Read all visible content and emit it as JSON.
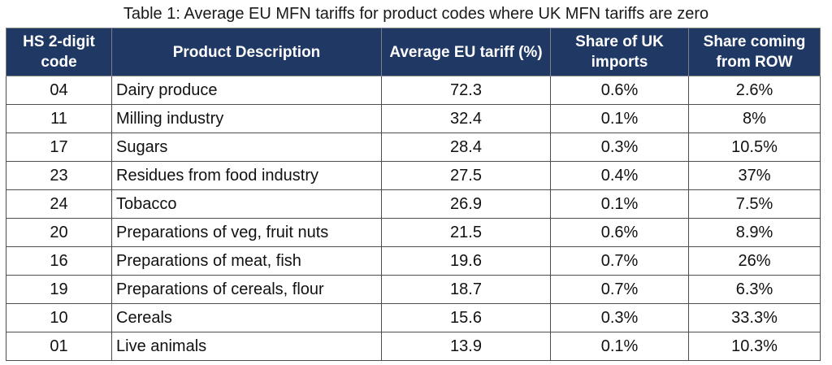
{
  "caption": "Table 1: Average EU MFN tariffs for product codes where UK MFN tariffs are zero",
  "header": {
    "code": "HS 2-digit code",
    "description": "Product Description",
    "avg_eu_tariff": "Average EU tariff (%)",
    "share_uk": "Share of UK imports",
    "share_row": "Share coming from ROW"
  },
  "colors": {
    "header_bg": "#1f3864",
    "header_text": "#ffffff",
    "grid": "#4d4d4d"
  },
  "rows": [
    {
      "code": "04",
      "description": "Dairy produce",
      "avg_eu_tariff": "72.3",
      "share_uk": "0.6%",
      "share_row": "2.6%"
    },
    {
      "code": "11",
      "description": "Milling industry",
      "avg_eu_tariff": "32.4",
      "share_uk": "0.1%",
      "share_row": "8%"
    },
    {
      "code": "17",
      "description": "Sugars",
      "avg_eu_tariff": "28.4",
      "share_uk": "0.3%",
      "share_row": "10.5%"
    },
    {
      "code": "23",
      "description": "Residues from food industry",
      "avg_eu_tariff": "27.5",
      "share_uk": "0.4%",
      "share_row": "37%"
    },
    {
      "code": "24",
      "description": "Tobacco",
      "avg_eu_tariff": "26.9",
      "share_uk": "0.1%",
      "share_row": "7.5%"
    },
    {
      "code": "20",
      "description": "Preparations of veg, fruit nuts",
      "avg_eu_tariff": "21.5",
      "share_uk": "0.6%",
      "share_row": "8.9%"
    },
    {
      "code": "16",
      "description": "Preparations of meat, fish",
      "avg_eu_tariff": "19.6",
      "share_uk": "0.7%",
      "share_row": "26%"
    },
    {
      "code": "19",
      "description": "Preparations of cereals, flour",
      "avg_eu_tariff": "18.7",
      "share_uk": "0.7%",
      "share_row": "6.3%"
    },
    {
      "code": "10",
      "description": "Cereals",
      "avg_eu_tariff": "15.6",
      "share_uk": "0.3%",
      "share_row": "33.3%"
    },
    {
      "code": "01",
      "description": "Live animals",
      "avg_eu_tariff": "13.9",
      "share_uk": "0.1%",
      "share_row": "10.3%"
    }
  ]
}
